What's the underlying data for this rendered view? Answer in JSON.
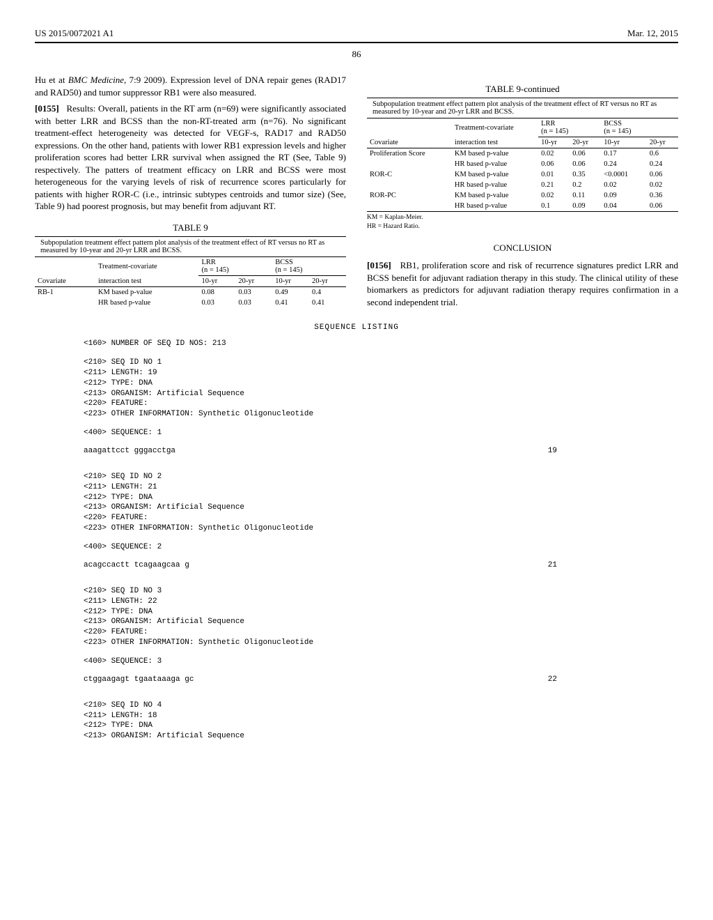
{
  "header": {
    "left": "US 2015/0072021 A1",
    "right": "Mar. 12, 2015",
    "page": "86"
  },
  "leftcol": {
    "p1": "Hu et at BMC Medicine, 7:9 2009). Expression level of DNA repair genes (RAD17 and RAD50) and tumor suppressor RB1 were also measured.",
    "p2_label": "[0155]",
    "p2": "Results: Overall, patients in the RT arm (n=69) were significantly associated with better LRR and BCSS than the non-RT-treated arm (n=76). No significant treatment-effect heterogeneity was detected for VEGF-s, RAD17 and RAD50 expressions. On the other hand, patients with lower RB1 expression levels and higher proliferation scores had better LRR survival when assigned the RT (See, Table 9) respectively. The patters of treatment efficacy on LRR and BCSS were most heterogeneous for the varying levels of risk of recurrence scores particularly for patients with higher ROR-C (i.e., intrinsic subtypes centroids and tumor size) (See, Table 9) had poorest prognosis, but may benefit from adjuvant RT."
  },
  "table9a": {
    "title": "TABLE 9",
    "caption": "Subpopulation treatment effect pattern plot analysis of the treatment effect of RT versus no RT as measured by 10-year and 20-yr LRR and BCSS.",
    "h_treat": "Treatment-covariate",
    "h_lrr": "LRR",
    "h_bcss": "BCSS",
    "h_n": "(n = 145)",
    "h_cov": "Covariate",
    "h_int": "interaction test",
    "h_10": "10-yr",
    "h_20": "20-yr",
    "rows": [
      {
        "cov": "RB-1",
        "test": "KM based p-value",
        "l10": "0.08",
        "l20": "0.03",
        "b10": "0.49",
        "b20": "0.4"
      },
      {
        "cov": "",
        "test": "HR based p-value",
        "l10": "0.03",
        "l20": "0.03",
        "b10": "0.41",
        "b20": "0.41"
      }
    ]
  },
  "table9b": {
    "title": "TABLE 9-continued",
    "caption": "Subpopulation treatment effect pattern plot analysis of the treatment effect of RT versus no RT as measured by 10-year and 20-yr LRR and BCSS.",
    "rows": [
      {
        "cov": "Proliferation Score",
        "test": "KM based p-value",
        "l10": "0.02",
        "l20": "0.06",
        "b10": "0.17",
        "b20": "0.6"
      },
      {
        "cov": "",
        "test": "HR based p-value",
        "l10": "0.06",
        "l20": "0.06",
        "b10": "0.24",
        "b20": "0.24"
      },
      {
        "cov": "ROR-C",
        "test": "KM based p-value",
        "l10": "0.01",
        "l20": "0.35",
        "b10": "<0.0001",
        "b20": "0.06"
      },
      {
        "cov": "",
        "test": "HR based p-value",
        "l10": "0.21",
        "l20": "0.2",
        "b10": "0.02",
        "b20": "0.02"
      },
      {
        "cov": "ROR-PC",
        "test": "KM based p-value",
        "l10": "0.02",
        "l20": "0.11",
        "b10": "0.09",
        "b20": "0.36"
      },
      {
        "cov": "",
        "test": "HR based p-value",
        "l10": "0.1",
        "l20": "0.09",
        "b10": "0.04",
        "b20": "0.06"
      }
    ],
    "note1": "KM = Kaplan-Meier.",
    "note2": "HR = Hazard Ratio."
  },
  "conclusion": {
    "head": "CONCLUSION",
    "p_label": "[0156]",
    "p": "RB1, proliferation score and risk of recurrence signatures predict LRR and BCSS benefit for adjuvant radiation therapy in this study. The clinical utility of these biomarkers as predictors for adjuvant radiation therapy requires confirmation in a second independent trial."
  },
  "seq": {
    "title": "SEQUENCE LISTING",
    "count_line": "<160> NUMBER OF SEQ ID NOS: 213",
    "entries": [
      {
        "lines": [
          "<210> SEQ ID NO 1",
          "<211> LENGTH: 19",
          "<212> TYPE: DNA",
          "<213> ORGANISM: Artificial Sequence",
          "<220> FEATURE:",
          "<223> OTHER INFORMATION: Synthetic Oligonucleotide"
        ],
        "seq400": "<400> SEQUENCE: 1",
        "sequence": "aaagattcct gggacctga",
        "len": "19"
      },
      {
        "lines": [
          "<210> SEQ ID NO 2",
          "<211> LENGTH: 21",
          "<212> TYPE: DNA",
          "<213> ORGANISM: Artificial Sequence",
          "<220> FEATURE:",
          "<223> OTHER INFORMATION: Synthetic Oligonucleotide"
        ],
        "seq400": "<400> SEQUENCE: 2",
        "sequence": "acagccactt tcagaagcaa g",
        "len": "21"
      },
      {
        "lines": [
          "<210> SEQ ID NO 3",
          "<211> LENGTH: 22",
          "<212> TYPE: DNA",
          "<213> ORGANISM: Artificial Sequence",
          "<220> FEATURE:",
          "<223> OTHER INFORMATION: Synthetic Oligonucleotide"
        ],
        "seq400": "<400> SEQUENCE: 3",
        "sequence": "ctggaagagt tgaataaaga gc",
        "len": "22"
      },
      {
        "lines": [
          "<210> SEQ ID NO 4",
          "<211> LENGTH: 18",
          "<212> TYPE: DNA",
          "<213> ORGANISM: Artificial Sequence"
        ]
      }
    ]
  }
}
